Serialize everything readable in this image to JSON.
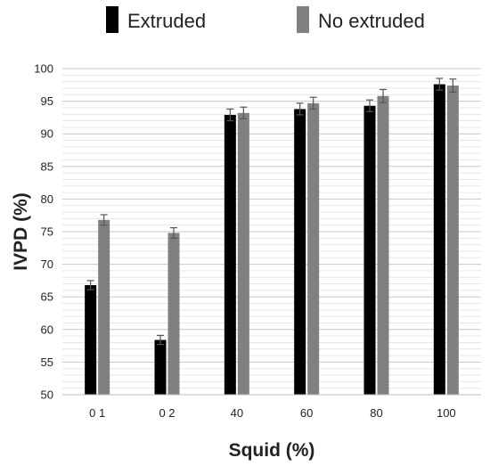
{
  "chart_data": {
    "type": "bar",
    "title": "",
    "xlabel": "Squid (%)",
    "ylabel": "IVPD (%)",
    "ylim": [
      50,
      100
    ],
    "y_major_ticks": [
      50,
      55,
      60,
      65,
      70,
      75,
      80,
      85,
      90,
      95,
      100
    ],
    "y_minor_step": 1,
    "grid": "horizontal",
    "legend_position": "top",
    "categories": [
      "0 1",
      "0 2",
      "40",
      "60",
      "80",
      "100"
    ],
    "series": [
      {
        "name": "Extruded",
        "color": "#000000",
        "values": [
          66.8,
          58.4,
          92.9,
          93.8,
          94.3,
          97.6
        ],
        "errors": [
          0.7,
          0.7,
          0.9,
          0.9,
          0.9,
          0.9
        ]
      },
      {
        "name": "No extruded",
        "color": "#808080",
        "values": [
          76.8,
          74.8,
          93.2,
          94.7,
          95.8,
          97.4
        ],
        "errors": [
          0.8,
          0.8,
          0.9,
          0.9,
          1.0,
          1.0
        ]
      }
    ]
  }
}
